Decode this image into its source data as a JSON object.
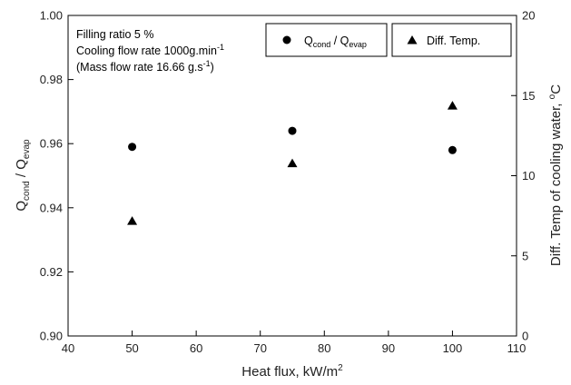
{
  "chart_data": {
    "type": "scatter",
    "x_axis": {
      "label": "Heat flux, kW/m",
      "label_sup": "2",
      "lim": [
        40,
        110
      ],
      "ticks": [
        "40",
        "50",
        "60",
        "70",
        "80",
        "90",
        "100",
        "110"
      ]
    },
    "y_axis_left": {
      "label_parts": [
        "Q",
        "cond",
        " / Q",
        "evap"
      ],
      "lim": [
        0.9,
        1.0
      ],
      "ticks": [
        "0.90",
        "0.92",
        "0.94",
        "0.96",
        "0.98",
        "1.00"
      ]
    },
    "y_axis_right": {
      "label": "Diff. Temp of cooling water, ",
      "label_sup": "o",
      "label_tail": "C",
      "lim": [
        0,
        20
      ],
      "ticks": [
        "0",
        "5",
        "10",
        "15",
        "20"
      ]
    },
    "annotation": {
      "line1": "Filling ratio 5 %",
      "line2": "Cooling flow rate 1000g.min",
      "line2_sup": "-1",
      "line3a": "(Mass flow rate 16.66 g.s",
      "line3_sup": "-1",
      "line3b": ")"
    },
    "legend_placement": "top-right",
    "grid": false,
    "series": [
      {
        "name_parts": [
          "Q",
          "cond",
          " / Q",
          "evap"
        ],
        "marker": "circle",
        "axis": "left",
        "color": "#000000",
        "x": [
          50,
          75,
          100
        ],
        "y": [
          0.959,
          0.964,
          0.958
        ]
      },
      {
        "name": "Diff. Temp.",
        "marker": "triangle",
        "axis": "right",
        "color": "#000000",
        "x": [
          50,
          75,
          100
        ],
        "y": [
          7.2,
          10.8,
          14.4
        ]
      }
    ]
  }
}
